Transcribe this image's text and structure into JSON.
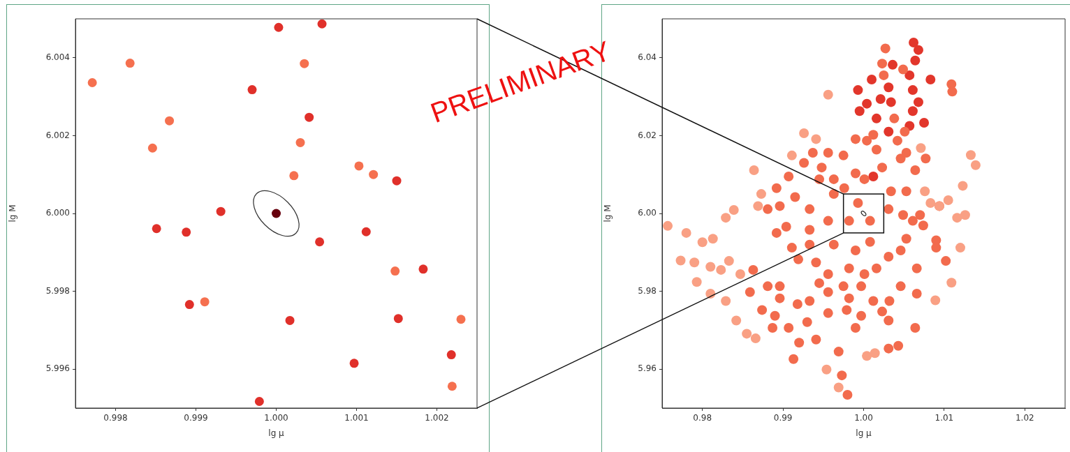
{
  "chart_data": [
    {
      "type": "scatter",
      "xlabel": "lg μ",
      "ylabel": "lg M",
      "marker": "circle",
      "xlim": [
        0.9975,
        1.0025
      ],
      "ylim": [
        5.995,
        6.005
      ],
      "xticks": [
        0.998,
        0.999,
        {
          "value": 1,
          "label": "1.000"
        },
        1.001,
        1.002
      ],
      "yticks": [
        5.996,
        5.998,
        {
          "value": 6,
          "label": "6.000"
        },
        6.002,
        6.004
      ],
      "series": [
        {
          "color": "#f5704f",
          "x": [
            0.99771,
            0.99818,
            0.99867,
            0.99846,
            1.00035,
            1.0003,
            1.00022,
            1.00103,
            1.00121,
            1.00148,
            0.99911,
            1.0023,
            1.00219
          ],
          "values": [
            6.00336,
            6.00386,
            6.00238,
            6.00168,
            6.00385,
            6.00182,
            6.00097,
            6.00122,
            6.001,
            5.99852,
            5.99773,
            5.99728,
            5.99556
          ]
        },
        {
          "color": "#e0302a",
          "x": [
            0.99851,
            0.99888,
            0.99892,
            0.99931,
            0.9997,
            0.99979,
            1.00003,
            1.00041,
            1.00057,
            1.00054,
            1.00017,
            1.0015,
            1.00112,
            1.00183,
            1.00152,
            1.00097,
            1.00218
          ],
          "values": [
            5.99961,
            5.99952,
            5.99766,
            6.00005,
            6.00318,
            5.99517,
            6.00478,
            6.00247,
            6.00487,
            5.99927,
            5.99725,
            6.00084,
            5.99953,
            5.99857,
            5.9973,
            5.99615,
            5.99637
          ]
        },
        {
          "color": "#67000d",
          "x": [
            1.0
          ],
          "values": [
            6.0
          ]
        }
      ]
    },
    {
      "type": "scatter",
      "xlabel": "lg μ",
      "ylabel": "lg M",
      "marker": "circle",
      "xlim": [
        0.975,
        1.025
      ],
      "ylim": [
        5.95,
        6.05
      ],
      "xticks": [
        0.98,
        0.99,
        {
          "value": 1,
          "label": "1.00"
        },
        1.01,
        1.02
      ],
      "yticks": [
        5.96,
        5.98,
        {
          "value": 6,
          "label": "6.00"
        },
        6.02,
        6.04
      ],
      "annotations": [
        "PRELIMINARY"
      ],
      "series": [
        {
          "color": "#f9a084",
          "x": [
            0.9757,
            0.978,
            0.98,
            0.9813,
            0.9829,
            0.9839,
            0.9773,
            0.979,
            0.9793,
            0.981,
            0.981,
            0.9833,
            0.9823,
            0.9829,
            0.9842,
            0.9855,
            0.9866,
            0.9847,
            0.9864,
            0.9873,
            0.9869,
            0.9911,
            0.9926,
            0.9941,
            0.9956,
            0.9954,
            0.9969,
            1.0004,
            1.0014,
            1.0116,
            1.0126,
            1.0105,
            1.0094,
            1.0123,
            1.0133,
            1.0139,
            1.012,
            1.0109,
            1.0089,
            1.0076,
            1.0083,
            1.0071
          ],
          "values": [
            5.9968,
            5.995,
            5.9926,
            5.9935,
            5.9989,
            6.0009,
            5.9879,
            5.9874,
            5.9824,
            5.9794,
            5.9863,
            5.9878,
            5.9855,
            5.9775,
            5.9725,
            5.9691,
            5.9679,
            5.9844,
            6.0111,
            6.005,
            6.0019,
            6.0149,
            6.0206,
            6.0191,
            6.0305,
            5.9599,
            5.9553,
            5.9634,
            5.9641,
            5.9989,
            5.9996,
            6.0034,
            6.0019,
            6.0071,
            6.015,
            6.0124,
            5.9912,
            5.9822,
            5.9777,
            6.0057,
            6.0027,
            6.0168
          ]
        },
        {
          "color": "#f26b4d",
          "x": [
            0.9863,
            0.9881,
            0.9887,
            0.9896,
            0.9907,
            0.9913,
            0.992,
            0.9896,
            0.9973,
            0.998,
            0.9969,
            0.9941,
            0.993,
            0.9896,
            0.9904,
            0.9915,
            0.9933,
            0.9933,
            0.9919,
            0.9941,
            0.9911,
            0.9945,
            0.9956,
            0.9948,
            0.9963,
            0.9956,
            0.9963,
            0.9956,
            0.9956,
            0.9975,
            0.9979,
            0.999,
            0.9997,
            0.9982,
            0.9975,
            0.999,
            1.0001,
            0.999,
            1.0004,
            1.0012,
            1.0016,
            1.0023,
            1.0027,
            1.0023,
            1.0025,
            1.0038,
            1.0042,
            1.0046,
            1.0049,
            1.0051,
            1.0053,
            1.0064,
            1.0077,
            1.007,
            1.0074,
            1.0061,
            1.0094,
            1.0109,
            1.011,
            1.009,
            1.009,
            1.0102,
            1.0066,
            1.0064,
            1.0066,
            1.0046,
            1.0043,
            1.0031,
            1.0031,
            1.0023,
            1.0032,
            1.0016,
            1.0031,
            1.0046,
            1.0053,
            1.0049,
            1.0031,
            1.0034,
            1.0053,
            0.9993,
            1.0008,
            0.9982,
            0.999,
            1.0008,
            1.0001,
            0.9982,
            0.9997,
            1.0012,
            0.9945,
            0.9933,
            0.9956,
            0.9918,
            0.9874,
            0.9859,
            0.989,
            0.9881,
            0.9892,
            0.9907,
            0.9926,
            0.9937,
            0.9963,
            0.9976,
            0.9933,
            0.9892
          ],
          "values": [
            5.9855,
            5.9813,
            5.9706,
            5.9782,
            5.9706,
            5.9626,
            5.9668,
            5.9813,
            5.9584,
            5.9534,
            5.9645,
            5.9676,
            5.9721,
            6.0019,
            5.9966,
            6.0042,
            6.0011,
            5.992,
            5.9882,
            5.9874,
            5.9912,
            6.0088,
            6.0156,
            6.0118,
            6.005,
            5.9981,
            5.992,
            5.9844,
            5.9798,
            5.9813,
            5.9752,
            5.9706,
            5.9737,
            5.9782,
            6.0149,
            6.0103,
            6.0088,
            6.0191,
            6.0187,
            6.0202,
            6.0164,
            6.0118,
            6.0424,
            6.0385,
            6.0355,
            6.0244,
            6.0187,
            6.0141,
            6.037,
            6.021,
            6.0156,
            6.0111,
            6.0141,
            5.9996,
            5.9969,
            5.9981,
            6.0019,
            6.0332,
            6.0313,
            5.9931,
            5.9912,
            5.9878,
            5.9794,
            5.9706,
            5.9859,
            5.9813,
            5.966,
            5.9653,
            5.9725,
            5.9748,
            5.9775,
            5.9859,
            5.9889,
            5.9905,
            5.9935,
            5.9996,
            6.0011,
            6.0057,
            6.0057,
            6.0027,
            5.9981,
            5.9981,
            5.9905,
            5.9927,
            5.9844,
            5.9859,
            5.9813,
            5.9775,
            5.9821,
            5.9775,
            5.9744,
            5.9767,
            5.9752,
            5.9798,
            5.9737,
            6.0011,
            6.0065,
            6.0095,
            6.013,
            6.0156,
            6.0088,
            6.0065,
            5.9958,
            5.995
          ]
        },
        {
          "color": "#e2362b",
          "x": [
            0.9993,
            0.9995,
            1.0004,
            1.001,
            1.0012,
            1.0016,
            1.0021,
            1.0031,
            1.0036,
            1.0034,
            1.0031,
            1.0057,
            1.0062,
            1.0068,
            1.0064,
            1.0061,
            1.0068,
            1.0061,
            1.0057,
            1.0075,
            1.0083
          ],
          "values": [
            6.0317,
            6.0263,
            6.0282,
            6.0344,
            6.0095,
            6.0244,
            6.0294,
            6.0324,
            6.0382,
            6.0286,
            6.021,
            6.0355,
            6.0439,
            6.042,
            6.0393,
            6.0317,
            6.0286,
            6.0263,
            6.0225,
            6.0233,
            6.0344
          ]
        }
      ]
    }
  ]
}
